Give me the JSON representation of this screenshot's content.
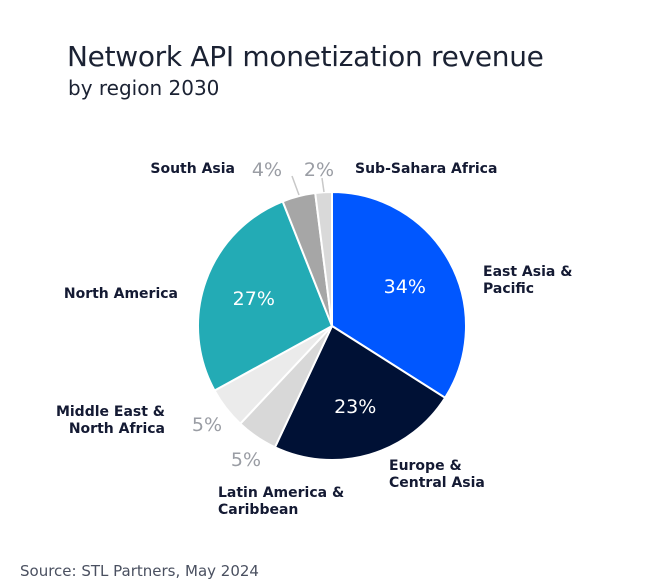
{
  "header": {
    "title": "Network API monetization revenue",
    "subtitle": "by region 2030"
  },
  "footer": {
    "source": "Source: STL Partners, May 2024"
  },
  "chart_data": {
    "type": "pie",
    "title": "Network API monetization revenue",
    "subtitle": "by region 2030",
    "unit": "%",
    "slices": [
      {
        "label": "East Asia & Pacific",
        "label_lines": [
          "East Asia &",
          "Pacific"
        ],
        "value": 34,
        "value_label": "34%",
        "color": "#0057ff"
      },
      {
        "label": "Europe & Central Asia",
        "label_lines": [
          "Europe &",
          "Central Asia"
        ],
        "value": 23,
        "value_label": "23%",
        "color": "#001135"
      },
      {
        "label": "Latin America & Caribbean",
        "label_lines": [
          "Latin America &",
          "Caribbean"
        ],
        "value": 5,
        "value_label": "5%",
        "color": "#d8d8d8"
      },
      {
        "label": "Middle East & North Africa",
        "label_lines": [
          "Middle East &",
          "North Africa"
        ],
        "value": 5,
        "value_label": "5%",
        "color": "#ebebeb"
      },
      {
        "label": "North America",
        "label_lines": [
          "North America"
        ],
        "value": 27,
        "value_label": "27%",
        "color": "#23abb5"
      },
      {
        "label": "South Asia",
        "label_lines": [
          "South Asia"
        ],
        "value": 4,
        "value_label": "4%",
        "color": "#a6a6a6"
      },
      {
        "label": "Sub-Sahara Africa",
        "label_lines": [
          "Sub-Sahara Africa"
        ],
        "value": 2,
        "value_label": "2%",
        "color": "#d9d9d9"
      }
    ],
    "start_angle": "12 o'clock",
    "direction": "clockwise",
    "legend": "none"
  }
}
